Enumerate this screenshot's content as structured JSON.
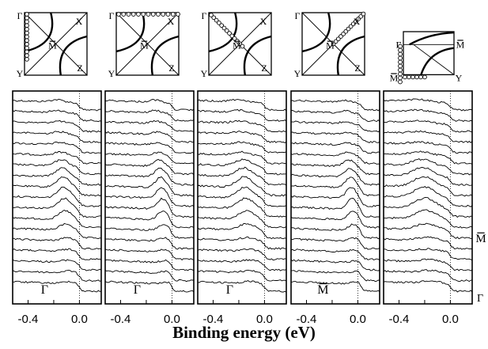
{
  "figure": {
    "axis_title": "Binding energy (eV)",
    "tick_labels": [
      "-0.4",
      "0.0"
    ],
    "right_labels": {
      "upper": "M",
      "upper_overline": true,
      "lower": "Γ",
      "lower_overline": false
    }
  },
  "panels": [
    {
      "inset": {
        "type": "square",
        "corner_labels": {
          "tl": "Γ",
          "tr": "X",
          "bl": "Y",
          "br": "Z"
        },
        "center_label": "M",
        "cut": "left-edge"
      },
      "label": "Γ",
      "label_overline": false
    },
    {
      "inset": {
        "type": "square",
        "corner_labels": {
          "tl": "Γ",
          "tr": "X",
          "bl": "Y",
          "br": "Z"
        },
        "center_label": "M",
        "cut": "top-edge"
      },
      "label": "Γ",
      "label_overline": false
    },
    {
      "inset": {
        "type": "square",
        "corner_labels": {
          "tl": "Γ",
          "tr": "X",
          "bl": "Y",
          "br": "Z"
        },
        "center_label": "M",
        "cut": "diagonal-to-M"
      },
      "label": "Γ",
      "label_overline": false
    },
    {
      "inset": {
        "type": "square",
        "corner_labels": {
          "tl": "Γ",
          "tr": "X",
          "bl": "Y",
          "br": "Z"
        },
        "center_label": "M",
        "cut": "diagonal-M-to-X"
      },
      "label": "M",
      "label_overline": true
    },
    {
      "inset": {
        "type": "quarter",
        "corner_labels": {
          "tl": "Γ",
          "tr": "M",
          "bl": "M",
          "br": "Y"
        },
        "tr_overline": true,
        "bl_overline": true,
        "cut": "corner"
      },
      "label": "",
      "label_overline": false
    }
  ]
}
